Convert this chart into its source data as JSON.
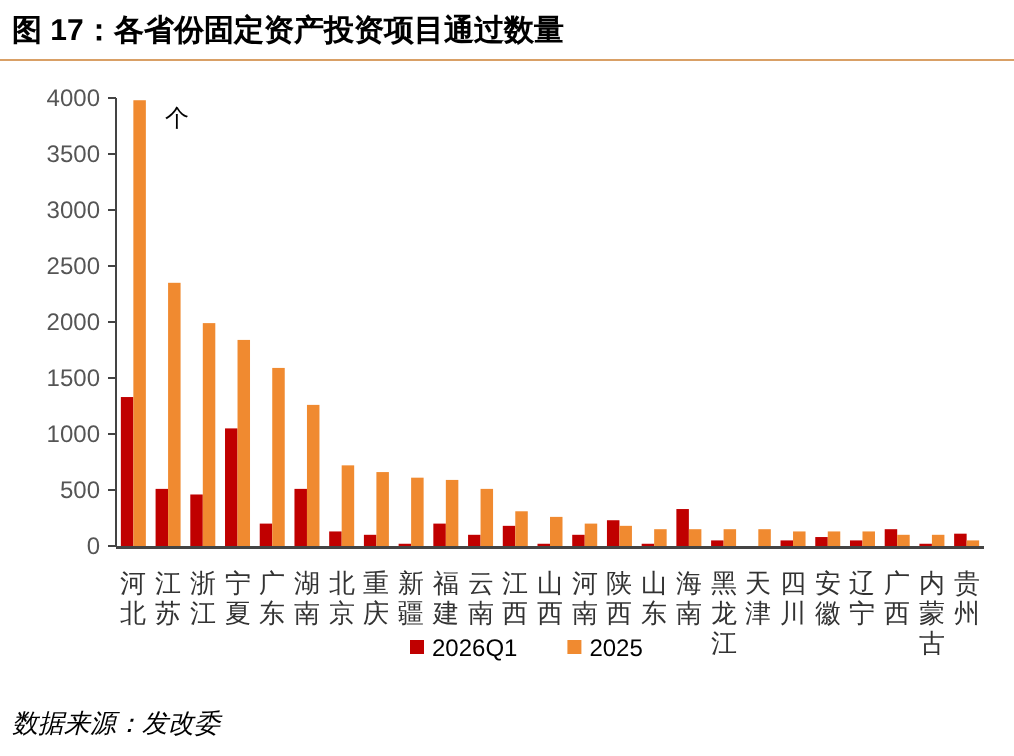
{
  "chart_data": {
    "type": "bar",
    "title": "图 17：各省份固定资产投资项目通过数量",
    "ylabel": "个",
    "categories": [
      "河北",
      "江苏",
      "浙江",
      "宁夏",
      "广东",
      "湖南",
      "北京",
      "重庆",
      "新疆",
      "福建",
      "云南",
      "江西",
      "山西",
      "河南",
      "陕西",
      "山东",
      "海南",
      "黑龙江",
      "天津",
      "四川",
      "安徽",
      "辽宁",
      "广西",
      "内蒙古",
      "贵州"
    ],
    "series": [
      {
        "name": "2026Q1",
        "color": "#c00000",
        "values": [
          1330,
          510,
          460,
          1050,
          200,
          510,
          130,
          100,
          20,
          200,
          100,
          180,
          20,
          100,
          230,
          20,
          330,
          50,
          null,
          50,
          80,
          50,
          150,
          20,
          110
        ]
      },
      {
        "name": "2025",
        "color": "#f08a30",
        "values": [
          3980,
          2350,
          1990,
          1840,
          1590,
          1260,
          720,
          660,
          610,
          590,
          510,
          310,
          260,
          200,
          180,
          150,
          150,
          150,
          150,
          130,
          130,
          130,
          100,
          100,
          50
        ]
      }
    ],
    "ylim": [
      0,
      4000
    ],
    "yticks": [
      0,
      500,
      1000,
      1500,
      2000,
      2500,
      3000,
      3500,
      4000
    ],
    "grid": false,
    "legend": "bottom",
    "annotations": [
      "数据来源：发改委"
    ]
  }
}
